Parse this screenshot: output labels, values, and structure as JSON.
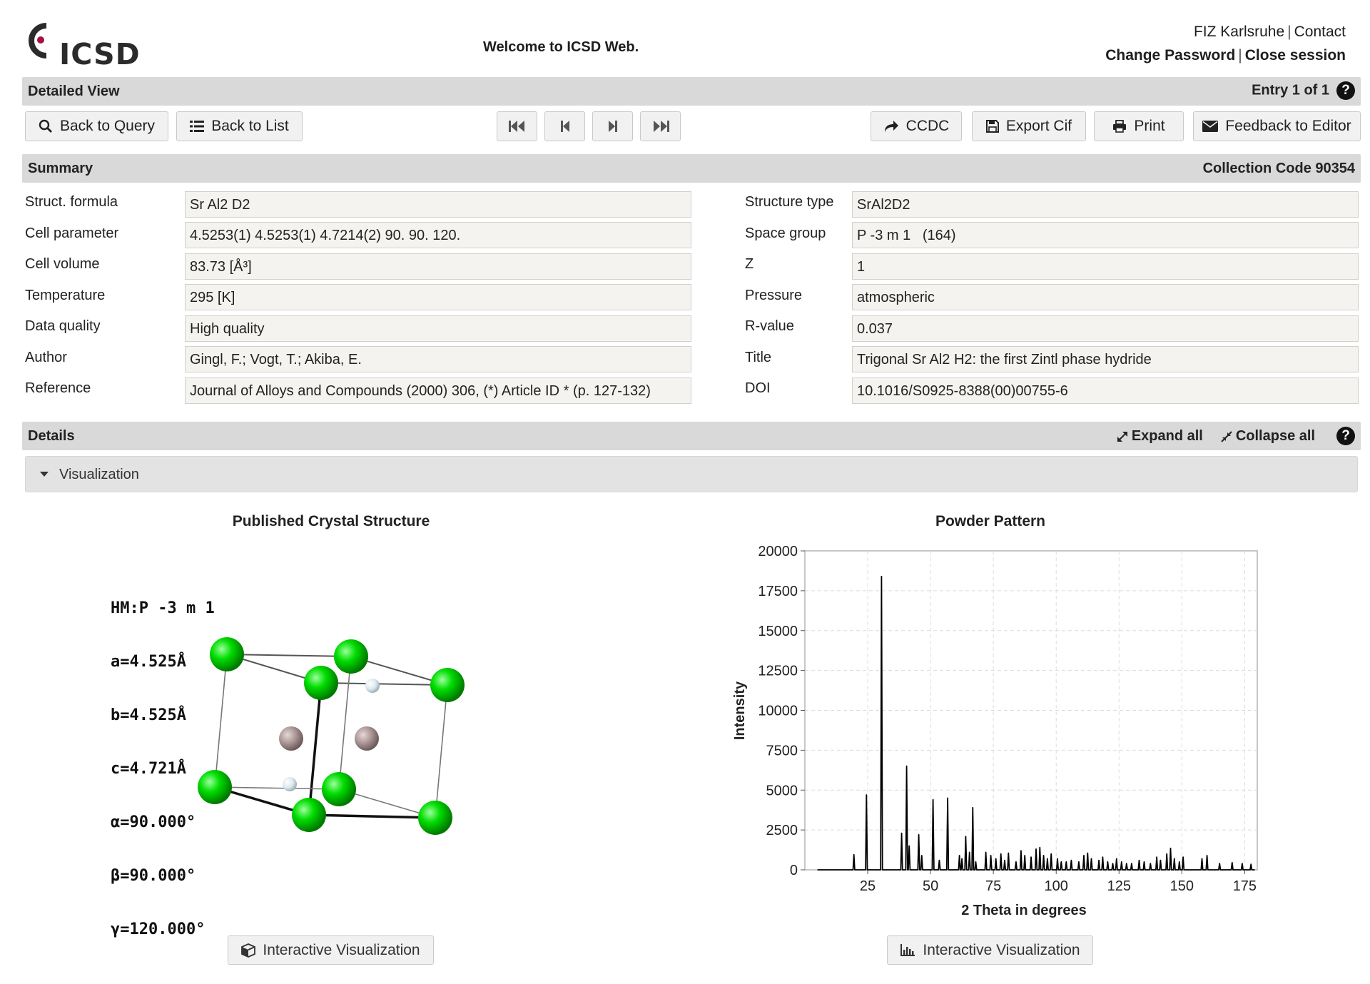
{
  "header": {
    "logo_text": "ICSD",
    "welcome": "Welcome to ICSD Web.",
    "link_fiz": "FIZ Karlsruhe",
    "link_contact": "Contact",
    "link_change_password": "Change Password",
    "link_close_session": "Close session",
    "separator": "|"
  },
  "detailed_view": {
    "title": "Detailed View",
    "entry": "Entry 1 of 1"
  },
  "toolbar": {
    "back_to_query": "Back to Query",
    "back_to_list": "Back to List",
    "ccdc": "CCDC",
    "export_cif": "Export Cif",
    "print": "Print",
    "feedback": "Feedback to Editor"
  },
  "summary": {
    "title": "Summary",
    "collection_code": "Collection Code 90354",
    "left": [
      {
        "label": "Struct. formula",
        "value": "Sr Al2 D2"
      },
      {
        "label": "Cell parameter",
        "value": "4.5253(1) 4.5253(1) 4.7214(2) 90. 90. 120."
      },
      {
        "label": "Cell volume",
        "value": "83.73 [Å³]"
      },
      {
        "label": "Temperature",
        "value": "295 [K]"
      },
      {
        "label": "Data quality",
        "value": "High quality"
      },
      {
        "label": "Author",
        "value": "Gingl, F.; Vogt, T.; Akiba, E."
      },
      {
        "label": "Reference",
        "value": "Journal of Alloys and Compounds (2000) 306, (*) Article ID * (p. 127-132)"
      }
    ],
    "right": [
      {
        "label": "Structure type",
        "value": "SrAl2D2"
      },
      {
        "label": "Space group",
        "value": "P -3 m 1   (164)"
      },
      {
        "label": "Z",
        "value": "1"
      },
      {
        "label": "Pressure",
        "value": "atmospheric"
      },
      {
        "label": "R-value",
        "value": "0.037"
      },
      {
        "label": "Title",
        "value": "Trigonal Sr Al2 H2: the first Zintl phase hydride"
      },
      {
        "label": "DOI",
        "value": "10.1016/S0925-8388(00)00755-6"
      }
    ]
  },
  "details": {
    "title": "Details",
    "expand_all": "Expand all",
    "collapse_all": "Collapse all",
    "visualization": "Visualization"
  },
  "crystal": {
    "title": "Published Crystal Structure",
    "lines": [
      "HM:P -3 m 1",
      "a=4.525Å",
      "b=4.525Å",
      "c=4.721Å",
      "α=90.000°",
      "β=90.000°",
      "γ=120.000°"
    ],
    "button": "Interactive Visualization",
    "colors": {
      "green_atom": "#00dd00",
      "grey_atom": "#b09a9a",
      "white_atom": "#dde9ee"
    }
  },
  "powder": {
    "title": "Powder Pattern",
    "button": "Interactive Visualization"
  },
  "chart_data": {
    "type": "line",
    "title": "Powder Pattern",
    "xlabel": "2 Theta in degrees",
    "ylabel": "Intensity",
    "xlim": [
      0,
      180
    ],
    "ylim": [
      0,
      20000
    ],
    "xticks": [
      25,
      50,
      75,
      100,
      125,
      150,
      175
    ],
    "yticks": [
      0,
      2500,
      5000,
      7500,
      10000,
      12500,
      15000,
      17500,
      20000
    ],
    "grid": true,
    "peaks": [
      [
        19.5,
        950
      ],
      [
        24.5,
        4700
      ],
      [
        30.5,
        18400
      ],
      [
        38.5,
        2300
      ],
      [
        40.5,
        6500
      ],
      [
        41.5,
        1500
      ],
      [
        45.3,
        2200
      ],
      [
        46.5,
        900
      ],
      [
        51.0,
        4400
      ],
      [
        53.5,
        600
      ],
      [
        56.8,
        4500
      ],
      [
        61.5,
        900
      ],
      [
        62.5,
        700
      ],
      [
        64.0,
        2100
      ],
      [
        65.5,
        1100
      ],
      [
        66.8,
        3900
      ],
      [
        68.0,
        500
      ],
      [
        72.0,
        1100
      ],
      [
        74.0,
        900
      ],
      [
        76.0,
        700
      ],
      [
        78.0,
        1000
      ],
      [
        79.5,
        600
      ],
      [
        81.0,
        1050
      ],
      [
        84.0,
        500
      ],
      [
        86.0,
        1200
      ],
      [
        87.5,
        900
      ],
      [
        90.0,
        800
      ],
      [
        92.0,
        1300
      ],
      [
        93.5,
        1400
      ],
      [
        95.0,
        900
      ],
      [
        96.5,
        700
      ],
      [
        98.0,
        1000
      ],
      [
        100.5,
        700
      ],
      [
        102.0,
        500
      ],
      [
        104.0,
        500
      ],
      [
        106.0,
        600
      ],
      [
        109.0,
        500
      ],
      [
        111.0,
        900
      ],
      [
        112.5,
        1050
      ],
      [
        114.0,
        700
      ],
      [
        117.0,
        600
      ],
      [
        118.5,
        800
      ],
      [
        120.5,
        500
      ],
      [
        122.5,
        400
      ],
      [
        124.0,
        700
      ],
      [
        126.0,
        500
      ],
      [
        128.0,
        400
      ],
      [
        130.0,
        400
      ],
      [
        133.0,
        600
      ],
      [
        135.0,
        500
      ],
      [
        137.5,
        400
      ],
      [
        140.0,
        800
      ],
      [
        141.5,
        600
      ],
      [
        144.0,
        1000
      ],
      [
        145.5,
        1350
      ],
      [
        147.0,
        700
      ],
      [
        149.0,
        500
      ],
      [
        150.5,
        800
      ],
      [
        158.0,
        700
      ],
      [
        160.0,
        900
      ],
      [
        165.0,
        400
      ],
      [
        170.0,
        450
      ],
      [
        174.0,
        400
      ],
      [
        177.5,
        350
      ]
    ]
  }
}
